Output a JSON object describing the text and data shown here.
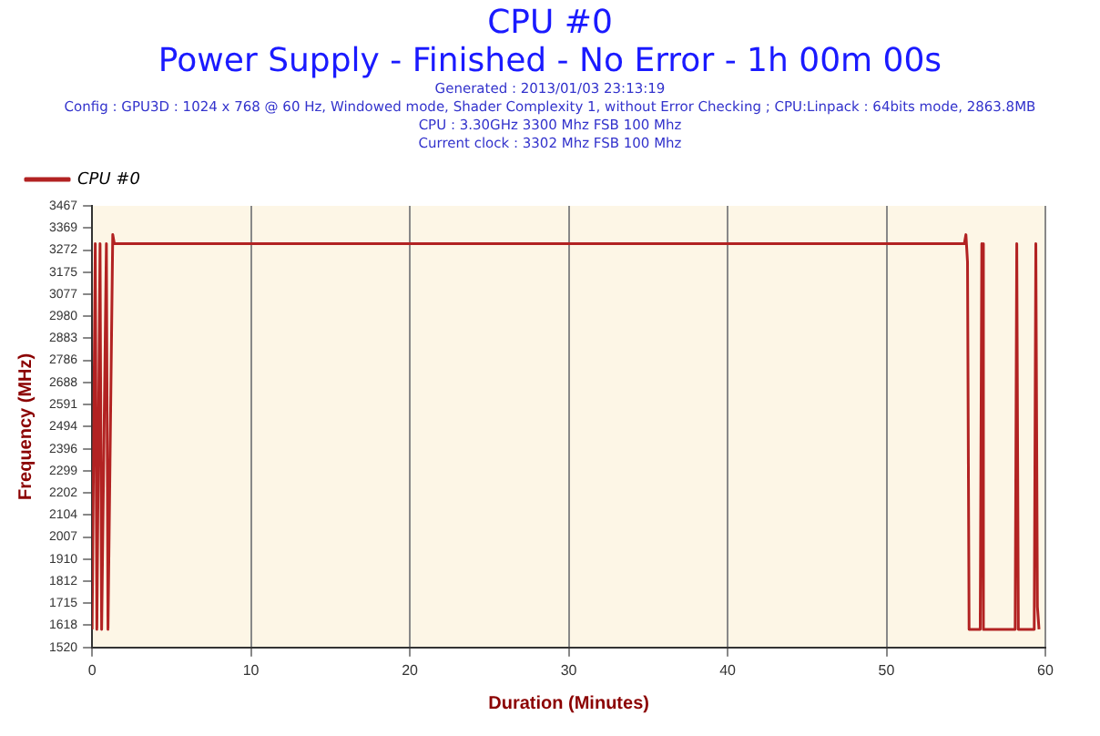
{
  "chart_data": {
    "type": "line",
    "title": "CPU #0",
    "subtitle": "Power Supply - Finished - No Error - 1h 00m 00s",
    "annotations": [
      "Generated : 2013/01/03 23:13:19",
      "Config : GPU3D : 1024 x 768 @ 60 Hz, Windowed mode, Shader Complexity 1, without Error Checking ; CPU:Linpack : 64bits mode, 2863.8MB",
      "CPU : 3.30GHz 3300 Mhz FSB 100 Mhz",
      "Current clock : 3302 Mhz FSB 100 Mhz"
    ],
    "xlabel": "Duration (Minutes)",
    "ylabel": "Frequency (MHz)",
    "series": [
      {
        "name": "CPU #0",
        "color": "#b22222",
        "x": [
          0,
          0.2,
          0.3,
          0.5,
          0.6,
          0.9,
          1.0,
          1.3,
          1.4,
          54.9,
          55.0,
          55.1,
          55.2,
          55.9,
          56.0,
          56.1,
          58.1,
          58.2,
          58.3,
          59.3,
          59.4,
          59.5,
          59.6
        ],
        "values": [
          1600,
          3300,
          1600,
          3300,
          1600,
          3300,
          1600,
          3340,
          3300,
          3300,
          3340,
          3220,
          1600,
          1600,
          3300,
          1600,
          1600,
          3300,
          1600,
          1600,
          3300,
          1700,
          1600
        ]
      }
    ],
    "xlim": [
      0,
      60
    ],
    "xticks": [
      0,
      10,
      20,
      30,
      40,
      50,
      60
    ],
    "ylim": [
      1520,
      3467
    ],
    "yticks": [
      1520,
      1618,
      1715,
      1812,
      1910,
      2007,
      2104,
      2202,
      2299,
      2396,
      2494,
      2591,
      2688,
      2786,
      2883,
      2980,
      3077,
      3175,
      3272,
      3369,
      3467
    ],
    "grid": "x",
    "legend": "top left",
    "marker": "none",
    "line_style": "solid"
  }
}
